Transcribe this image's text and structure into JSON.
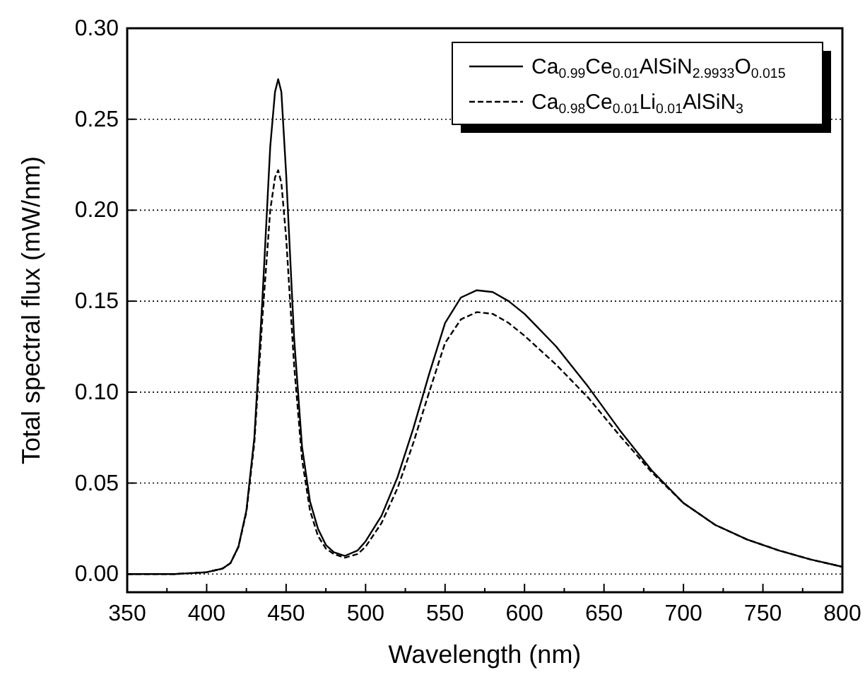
{
  "chart_data": {
    "type": "line",
    "xlabel": "Wavelength (nm)",
    "ylabel": "Total spectral flux (mW/nm)",
    "xlim": [
      350,
      800
    ],
    "xticks": [
      350,
      400,
      450,
      500,
      550,
      600,
      650,
      700,
      750,
      800
    ],
    "ylim": [
      -0.01,
      0.3
    ],
    "yticks": [
      {
        "value": 0,
        "label": "0.00"
      },
      {
        "value": 0.05,
        "label": "0.05"
      },
      {
        "value": 0.1,
        "label": "0.10"
      },
      {
        "value": 0.15,
        "label": "0.15"
      },
      {
        "value": 0.2,
        "label": "0.20"
      },
      {
        "value": 0.25,
        "label": "0.25"
      },
      {
        "value": 0.3,
        "label": "0.30"
      }
    ],
    "grid": "y",
    "legend": "top right",
    "series": [
      {
        "name": "Ca$_{0.99}$Ce$_{0.01}$AlSiN$_{2.9933}$O$_{0.015}$",
        "color": "#000000",
        "line_style": "solid",
        "x": [
          350,
          380,
          400,
          410,
          415,
          420,
          425,
          430,
          435,
          440,
          443,
          445,
          447,
          450,
          455,
          460,
          465,
          470,
          475,
          480,
          487,
          495,
          500,
          510,
          520,
          530,
          540,
          550,
          560,
          570,
          580,
          590,
          600,
          620,
          640,
          660,
          680,
          700,
          720,
          740,
          760,
          780,
          800
        ],
        "values": [
          0,
          0,
          0.001,
          0.003,
          0.006,
          0.015,
          0.035,
          0.075,
          0.15,
          0.235,
          0.265,
          0.272,
          0.265,
          0.22,
          0.13,
          0.07,
          0.04,
          0.025,
          0.016,
          0.012,
          0.01,
          0.013,
          0.018,
          0.032,
          0.053,
          0.08,
          0.11,
          0.138,
          0.152,
          0.156,
          0.155,
          0.15,
          0.143,
          0.125,
          0.103,
          0.079,
          0.057,
          0.039,
          0.027,
          0.019,
          0.013,
          0.008,
          0.004
        ]
      },
      {
        "name": "Ca$_{0.98}$Ce$_{0.01}$Li$_{0.01}$AlSiN$_{3}$",
        "color": "#000000",
        "line_style": "dashed",
        "x": [
          350,
          380,
          400,
          410,
          415,
          420,
          425,
          430,
          435,
          440,
          443,
          445,
          447,
          450,
          455,
          460,
          465,
          470,
          475,
          480,
          487,
          495,
          500,
          510,
          520,
          530,
          540,
          550,
          560,
          570,
          580,
          590,
          600,
          620,
          640,
          660,
          680,
          700,
          720,
          740,
          760,
          780,
          800
        ],
        "values": [
          0,
          0,
          0.001,
          0.003,
          0.006,
          0.015,
          0.034,
          0.072,
          0.14,
          0.2,
          0.218,
          0.222,
          0.215,
          0.185,
          0.115,
          0.063,
          0.035,
          0.021,
          0.014,
          0.011,
          0.009,
          0.011,
          0.015,
          0.028,
          0.047,
          0.072,
          0.1,
          0.127,
          0.14,
          0.144,
          0.143,
          0.138,
          0.131,
          0.115,
          0.097,
          0.076,
          0.056,
          0.039,
          0.027,
          0.019,
          0.013,
          0.008,
          0.004
        ]
      }
    ]
  }
}
